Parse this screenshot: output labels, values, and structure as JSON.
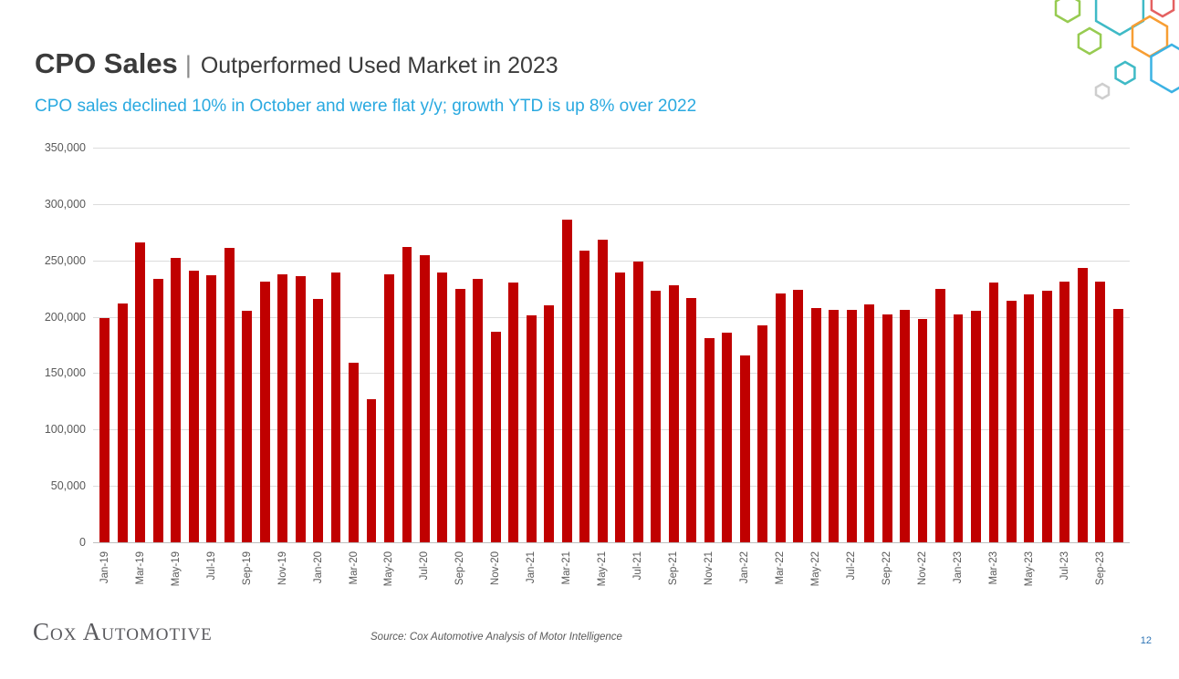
{
  "slide": {
    "title_bold": "CPO Sales",
    "title_divider": "|",
    "title_rest": "Outperformed Used Market in 2023",
    "subtitle": "CPO sales declined 10% in October and were flat y/y; growth YTD is up 8% over 2022",
    "subtitle_color": "#29a9e0",
    "footer": {
      "logo": "Cox Automotive",
      "source": "Source: Cox Automotive Analysis of Motor Intelligence",
      "page_number": "12"
    }
  },
  "chart_data": {
    "type": "bar",
    "title": "",
    "xlabel": "",
    "ylabel": "",
    "ylim": [
      0,
      350000
    ],
    "ytick_interval": 50000,
    "ytick_labels": [
      "0",
      "50,000",
      "100,000",
      "150,000",
      "200,000",
      "250,000",
      "300,000",
      "350,000"
    ],
    "grid": true,
    "legend": "none",
    "bar_color": "#c00000",
    "x": [
      "Jan-19",
      "Feb-19",
      "Mar-19",
      "Apr-19",
      "May-19",
      "Jun-19",
      "Jul-19",
      "Aug-19",
      "Sep-19",
      "Oct-19",
      "Nov-19",
      "Dec-19",
      "Jan-20",
      "Feb-20",
      "Mar-20",
      "Apr-20",
      "May-20",
      "Jun-20",
      "Jul-20",
      "Aug-20",
      "Sep-20",
      "Oct-20",
      "Nov-20",
      "Dec-20",
      "Jan-21",
      "Feb-21",
      "Mar-21",
      "Apr-21",
      "May-21",
      "Jun-21",
      "Jul-21",
      "Aug-21",
      "Sep-21",
      "Oct-21",
      "Nov-21",
      "Dec-21",
      "Jan-22",
      "Feb-22",
      "Mar-22",
      "Apr-22",
      "May-22",
      "Jun-22",
      "Jul-22",
      "Aug-22",
      "Sep-22",
      "Oct-22",
      "Nov-22",
      "Dec-22",
      "Jan-23",
      "Feb-23",
      "Mar-23",
      "Apr-23",
      "May-23",
      "Jun-23",
      "Jul-23",
      "Aug-23",
      "Sep-23",
      "Oct-23"
    ],
    "values": [
      199000,
      212000,
      266000,
      234000,
      252000,
      241000,
      237000,
      261000,
      205000,
      231000,
      238000,
      236000,
      216000,
      239000,
      159000,
      127000,
      238000,
      262000,
      255000,
      239000,
      225000,
      234000,
      187000,
      230000,
      201000,
      210000,
      286000,
      259000,
      268000,
      239000,
      249000,
      223000,
      228000,
      217000,
      181000,
      186000,
      166000,
      192000,
      221000,
      224000,
      208000,
      206000,
      206000,
      211000,
      202000,
      206000,
      198000,
      225000,
      202000,
      205000,
      230000,
      214000,
      220000,
      223000,
      231000,
      243000,
      231000,
      207000
    ],
    "x_tick_labels_shown": [
      "Jan-19",
      "Mar-19",
      "May-19",
      "Jul-19",
      "Sep-19",
      "Nov-19",
      "Jan-20",
      "Mar-20",
      "May-20",
      "Jul-20",
      "Sep-20",
      "Nov-20",
      "Jan-21",
      "Mar-21",
      "May-21",
      "Jul-21",
      "Sep-21",
      "Nov-21",
      "Jan-22",
      "Mar-22",
      "May-22",
      "Jul-22",
      "Sep-22",
      "Nov-22",
      "Jan-23",
      "Mar-23",
      "May-23",
      "Jul-23",
      "Sep-23"
    ]
  }
}
